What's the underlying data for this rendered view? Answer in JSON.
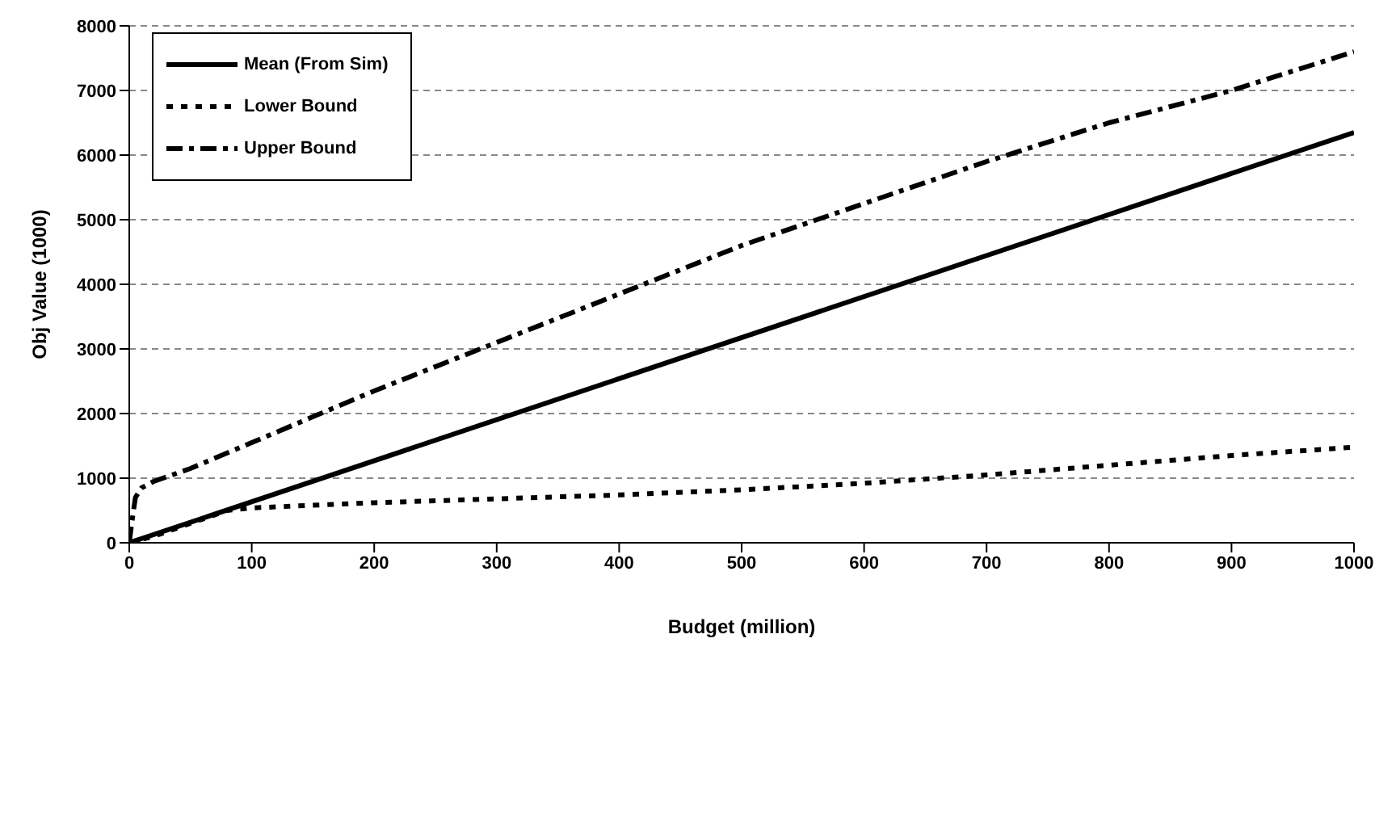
{
  "chart_data": {
    "type": "line",
    "xlabel": "Budget (million)",
    "ylabel": "Obj Value (1000)",
    "xlim": [
      0,
      1000
    ],
    "xticks": [
      0,
      100,
      200,
      300,
      400,
      500,
      600,
      700,
      800,
      900,
      1000
    ],
    "ylim": [
      0,
      8000
    ],
    "yticks": [
      0,
      1000,
      2000,
      3000,
      4000,
      5000,
      6000,
      7000,
      8000
    ],
    "grid": "y",
    "legend": "top left",
    "marker": "none",
    "series": [
      {
        "name": "Mean (From Sim)",
        "color": "#000000",
        "line_style": "solid",
        "x": [
          0,
          1000
        ],
        "values": [
          0,
          6350
        ]
      },
      {
        "name": "Lower Bound",
        "color": "#000000",
        "line_style": "dotted",
        "x": [
          0,
          20,
          50,
          80,
          100,
          150,
          200,
          300,
          400,
          500,
          600,
          700,
          800,
          900,
          1000
        ],
        "values": [
          0,
          100,
          300,
          500,
          540,
          580,
          620,
          680,
          740,
          820,
          920,
          1050,
          1200,
          1350,
          1480
        ]
      },
      {
        "name": "Upper Bound",
        "color": "#000000",
        "line_style": "dashed",
        "x": [
          0,
          2,
          5,
          10,
          20,
          50,
          100,
          200,
          300,
          400,
          500,
          600,
          700,
          800,
          900,
          1000
        ],
        "values": [
          0,
          300,
          700,
          850,
          950,
          1150,
          1550,
          2350,
          3100,
          3850,
          4600,
          5250,
          5900,
          6500,
          7000,
          7600
        ]
      }
    ]
  }
}
